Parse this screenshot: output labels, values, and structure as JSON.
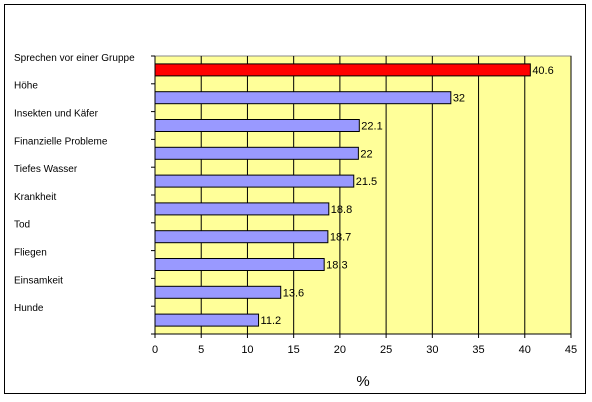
{
  "chart_data": {
    "type": "bar",
    "orientation": "horizontal",
    "categories": [
      "Sprechen vor einer Gruppe",
      "Höhe",
      "Insekten und Käfer",
      "Finanzielle Probleme",
      "Tiefes Wasser",
      "Krankheit",
      "Tod",
      "Fliegen",
      "Einsamkeit",
      "Hunde"
    ],
    "values": [
      40.6,
      32,
      22.1,
      22,
      21.5,
      18.8,
      18.7,
      18.3,
      13.6,
      11.2
    ],
    "value_labels": [
      "40.6",
      "32",
      "22.1",
      "22",
      "21.5",
      "18.8",
      "18.7",
      "18.3",
      "13.6",
      "11.2"
    ],
    "bar_colors": [
      "#ff0000",
      "#9999ff",
      "#9999ff",
      "#9999ff",
      "#9999ff",
      "#9999ff",
      "#9999ff",
      "#9999ff",
      "#9999ff",
      "#9999ff"
    ],
    "xlabel": "%",
    "ylabel": "",
    "title": "",
    "xlim": [
      0,
      45
    ],
    "xticks": [
      0,
      5,
      10,
      15,
      20,
      25,
      30,
      35,
      40,
      45
    ],
    "grid": "vertical",
    "plot_background": "#ffff99",
    "legend": "none"
  }
}
